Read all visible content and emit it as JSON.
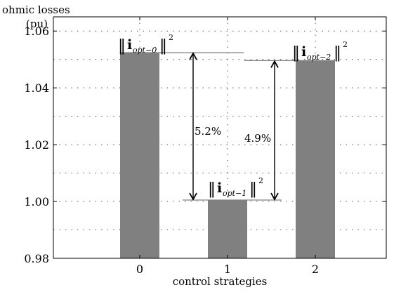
{
  "chart_data": {
    "type": "bar",
    "ylabel_line1": "ohmic losses",
    "ylabel_line2": "(pu)",
    "xlabel": "control strategies",
    "categories": [
      "0",
      "1",
      "2"
    ],
    "values": [
      1.0524,
      1.0005,
      1.0496
    ],
    "ylim": [
      0.98,
      1.065
    ],
    "yticks": [
      0.98,
      1.0,
      1.02,
      1.04,
      1.06
    ],
    "ytick_labels": [
      "0.98",
      "1.00",
      "1.02",
      "1.04",
      "1.06"
    ],
    "grid": true,
    "bar_color": "#808080",
    "annotations": {
      "bar_labels": [
        {
          "letter": "i",
          "subscript": "opt−0",
          "superscript": "2"
        },
        {
          "letter": "i",
          "subscript": "opt−1",
          "superscript": "2"
        },
        {
          "letter": "i",
          "subscript": "opt−2",
          "superscript": "2"
        }
      ],
      "differences": [
        {
          "label": "5.2%",
          "from": 1.0524,
          "to": 1.0005
        },
        {
          "label": "4.9%",
          "from": 1.0496,
          "to": 1.0005
        }
      ]
    }
  }
}
